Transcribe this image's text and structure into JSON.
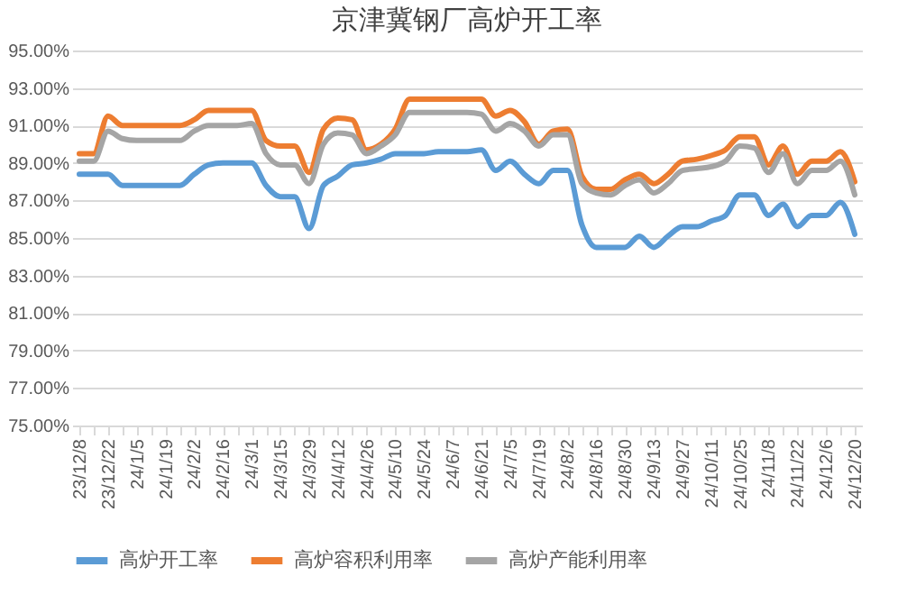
{
  "chart_data": {
    "type": "line",
    "title": "京津冀钢厂高炉开工率",
    "categories": [
      "23/12/8",
      null,
      "23/12/22",
      null,
      "24/1/5",
      null,
      "24/1/19",
      null,
      "24/2/2",
      null,
      "24/2/16",
      null,
      "24/3/1",
      null,
      "24/3/15",
      null,
      "24/3/29",
      null,
      "24/4/12",
      null,
      "24/4/26",
      null,
      "24/5/10",
      null,
      "24/5/24",
      null,
      "24/6/7",
      null,
      "24/6/21",
      null,
      "24/7/5",
      null,
      "24/7/19",
      null,
      "24/8/2",
      null,
      "24/8/16",
      null,
      "24/8/30",
      null,
      "24/9/13",
      null,
      "24/9/27",
      null,
      "24/10/11",
      null,
      "24/10/25",
      null,
      "24/11/8",
      null,
      "24/11/22",
      null,
      "24/12/6",
      null,
      "24/12/20"
    ],
    "series": [
      {
        "name": "高炉开工率",
        "color": "#5b9bd5",
        "values": [
          88.4,
          88.4,
          88.4,
          87.8,
          87.8,
          87.8,
          87.8,
          87.8,
          88.4,
          88.9,
          89.0,
          89.0,
          89.0,
          87.8,
          87.2,
          87.2,
          85.5,
          87.8,
          88.3,
          88.9,
          89.0,
          89.2,
          89.5,
          89.5,
          89.5,
          89.6,
          89.6,
          89.6,
          89.7,
          88.6,
          89.1,
          88.4,
          87.9,
          88.6,
          88.6,
          85.7,
          84.5,
          84.5,
          84.5,
          85.1,
          84.5,
          85.1,
          85.6,
          85.6,
          85.9,
          86.2,
          87.3,
          87.3,
          86.2,
          86.8,
          85.6,
          86.2,
          86.2,
          86.9,
          85.2
        ]
      },
      {
        "name": "高炉容积利用率",
        "color": "#ed7d31",
        "values": [
          89.5,
          89.5,
          91.5,
          91.0,
          91.0,
          91.0,
          91.0,
          91.0,
          91.3,
          91.8,
          91.8,
          91.8,
          91.8,
          90.2,
          89.9,
          89.9,
          88.5,
          90.8,
          91.4,
          91.3,
          89.7,
          90.0,
          90.8,
          92.4,
          92.4,
          92.4,
          92.4,
          92.4,
          92.4,
          91.5,
          91.8,
          91.2,
          90.0,
          90.7,
          90.8,
          88.3,
          87.6,
          87.6,
          88.1,
          88.4,
          87.9,
          88.4,
          89.1,
          89.2,
          89.4,
          89.7,
          90.4,
          90.4,
          88.9,
          89.9,
          88.4,
          89.1,
          89.1,
          89.6,
          88.0
        ]
      },
      {
        "name": "高炉产能利用率",
        "color": "#a5a5a5",
        "values": [
          89.1,
          89.1,
          90.7,
          90.3,
          90.2,
          90.2,
          90.2,
          90.2,
          90.7,
          91.0,
          91.0,
          91.0,
          91.1,
          89.5,
          88.9,
          88.9,
          87.9,
          90.0,
          90.6,
          90.5,
          89.5,
          89.9,
          90.5,
          91.7,
          91.7,
          91.7,
          91.7,
          91.7,
          91.6,
          90.7,
          91.1,
          90.7,
          89.9,
          90.5,
          90.5,
          87.9,
          87.4,
          87.3,
          87.8,
          88.1,
          87.4,
          87.9,
          88.6,
          88.7,
          88.8,
          89.1,
          89.9,
          89.8,
          88.5,
          89.5,
          87.9,
          88.6,
          88.6,
          89.1,
          87.3
        ]
      }
    ],
    "ylim": [
      75,
      95
    ],
    "yticks": [
      {
        "value": 75,
        "label": "75.00%"
      },
      {
        "value": 77,
        "label": "77.00%"
      },
      {
        "value": 79,
        "label": "79.00%"
      },
      {
        "value": 81,
        "label": "81.00%"
      },
      {
        "value": 83,
        "label": "83.00%"
      },
      {
        "value": 85,
        "label": "85.00%"
      },
      {
        "value": 87,
        "label": "87.00%"
      },
      {
        "value": 89,
        "label": "89.00%"
      },
      {
        "value": 91,
        "label": "91.00%"
      },
      {
        "value": 93,
        "label": "93.00%"
      },
      {
        "value": 95,
        "label": "95.00%"
      }
    ],
    "grid": "y",
    "legend": "bottom"
  }
}
